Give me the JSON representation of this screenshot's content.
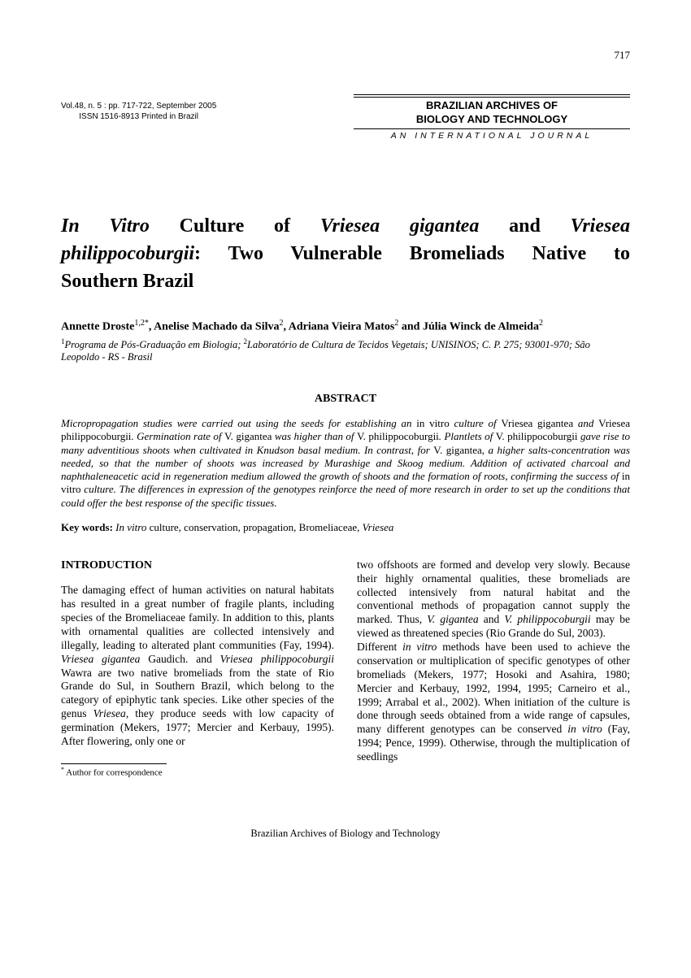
{
  "page_number": "717",
  "header": {
    "vol_line1": "Vol.48, n. 5 : pp. 717-722, September 2005",
    "vol_line2": "ISSN 1516-8913    Printed in Brazil",
    "journal_name_l1": "BRAZILIAN ARCHIVES OF",
    "journal_name_l2": "BIOLOGY AND TECHNOLOGY",
    "journal_subtitle": "AN INTERNATIONAL JOURNAL"
  },
  "title": {
    "line1_parts": [
      {
        "t": "In Vitro",
        "i": true
      },
      {
        "t": " Culture of ",
        "i": false
      },
      {
        "t": "Vriesea gigantea",
        "i": true
      },
      {
        "t": " and ",
        "i": false
      },
      {
        "t": "Vriesea",
        "i": true
      }
    ],
    "line2_parts": [
      {
        "t": "philippocoburgii",
        "i": true
      },
      {
        "t": ": Two Vulnerable Bromeliads Native to",
        "i": false
      }
    ],
    "line3_parts": [
      {
        "t": "Southern Brazil",
        "i": false
      }
    ]
  },
  "authors_html": "Annette Droste<sup>1,2*</sup>, Anelise Machado da Silva<sup>2</sup>, Adriana Vieira Matos<sup>2</sup> and Júlia Winck de Almeida<sup>2</sup>",
  "affiliations_html": "<sup>1</sup>Programa de Pós-Graduação em Biologia; <sup>2</sup>Laboratório de Cultura de Tecidos Vegetais; UNISINOS; C. P. 275; 93001-970; São Leopoldo - RS - Brasil",
  "abstract": {
    "heading": "ABSTRACT",
    "text_html": "Micropropagation studies were carried out using the seeds for establishing an <span class=\"roman\">in vitro</span> culture of <span class=\"roman\">Vriesea gigantea</span> and <span class=\"roman\">Vriesea philippocoburgii</span>. Germination rate of <span class=\"roman\">V. gigantea</span> was higher than of <span class=\"roman\">V. philippocoburgii</span>. Plantlets of <span class=\"roman\">V. philippocoburgii</span> gave rise to many adventitious shoots when cultivated in Knudson basal medium. In contrast, for <span class=\"roman\">V. gigantea</span>, a higher salts-concentration was needed, so that the number of shoots was increased by Murashige and Skoog medium. Addition of activated charcoal and naphthaleneacetic acid in regeneration medium allowed the growth of shoots and the formation of roots, confirming the success of <span class=\"roman\">in vitro</span> culture. The differences in expression of the genotypes reinforce the need of more research in order to set up the conditions that could offer the best response of the specific tissues."
  },
  "keywords": {
    "label": "Key words:",
    "text_html": " <span class=\"ital\">In vitro</span> culture, conservation, propagation, Bromeliaceae, <span class=\"ital\">Vriesea</span>"
  },
  "intro_heading": "INTRODUCTION",
  "col_left_html": "The damaging effect of human activities on natural habitats has resulted in a great number of fragile plants, including species of the Bromeliaceae family. In addition to this, plants with ornamental qualities are collected intensively and illegally, leading to alterated plant communities (Fay, 1994). <span class=\"ital\">Vriesea gigantea</span> Gaudich. and <span class=\"ital\">Vriesea philippocoburgii</span> Wawra are two native bromeliads from the state of Rio Grande do Sul, in Southern Brazil, which belong to the category of epiphytic tank species. Like other species of the genus <span class=\"ital\">Vriesea</span>, they produce seeds with low capacity of germination (Mekers, 1977; Mercier and Kerbauy, 1995). After flowering, only one or",
  "col_right_html": "two offshoots are formed and develop very slowly. Because their highly ornamental qualities, these bromeliads are collected intensively from natural habitat and the conventional methods of propagation cannot supply the marked. Thus, <span class=\"ital\">V. gigantea</span> and <span class=\"ital\">V. philippocoburgii</span> may be viewed as threatened species (Rio Grande do Sul, 2003).<br>Different <span class=\"ital\">in vitro</span> methods have been used to achieve the conservation or multiplication of specific genotypes of other bromeliads (Mekers, 1977; Hosoki and Asahira, 1980; Mercier and Kerbauy, 1992, 1994, 1995; Carneiro et al., 1999; Arrabal et al., 2002). When initiation of the culture is done through seeds obtained from a wide range of capsules, many different genotypes can be conserved <span class=\"ital\">in vitro</span> (Fay, 1994; Pence, 1999). Otherwise, through the multiplication of seedlings",
  "footnote_html": "<sup>*</sup> Author for correspondence",
  "footer": "Brazilian Archives of Biology and Technology"
}
